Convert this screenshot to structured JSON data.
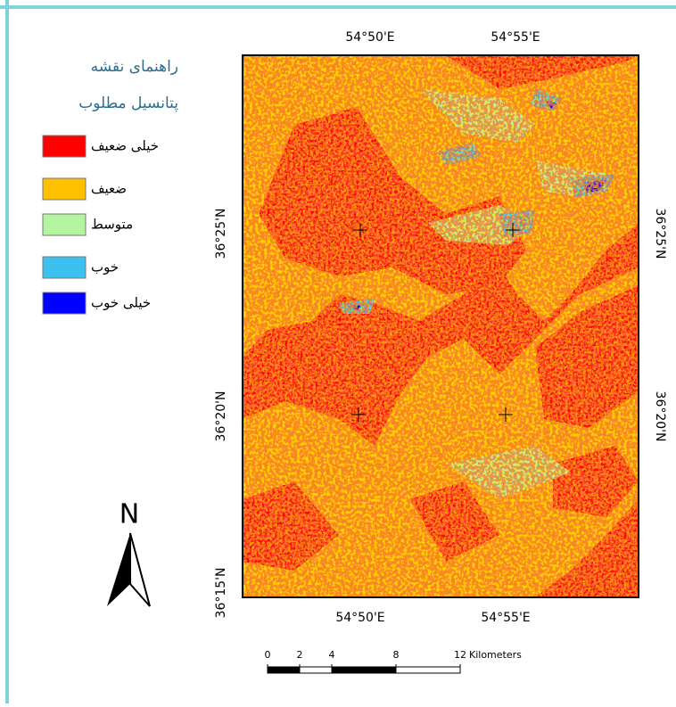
{
  "legend": {
    "title": [
      "راهنمای نقشه",
      "پتانسیل مطلوب"
    ],
    "items": [
      {
        "label": "خیلی ضعیف",
        "color": "#ff0000"
      },
      {
        "label": "ضعیف",
        "color": "#ffc000"
      },
      {
        "label": "متوسط",
        "color": "#b4f5a0"
      },
      {
        "label": "خوب",
        "color": "#3cc0f0"
      },
      {
        "label": "خیلی خوب",
        "color": "#0000ff"
      }
    ]
  },
  "map": {
    "top_labels": [
      "54°50'E",
      "54°55'E"
    ],
    "bottom_labels": [
      "54°50'E",
      "54°55'E"
    ],
    "left_labels": [
      "36°25'N",
      "36°20'N",
      "36°15'N"
    ],
    "right_labels": [
      "36°25'N",
      "36°20'N"
    ]
  },
  "north_arrow": "N",
  "scale_bar": {
    "ticks": [
      0,
      2,
      4,
      8,
      12
    ],
    "unit": "Kilometers"
  }
}
